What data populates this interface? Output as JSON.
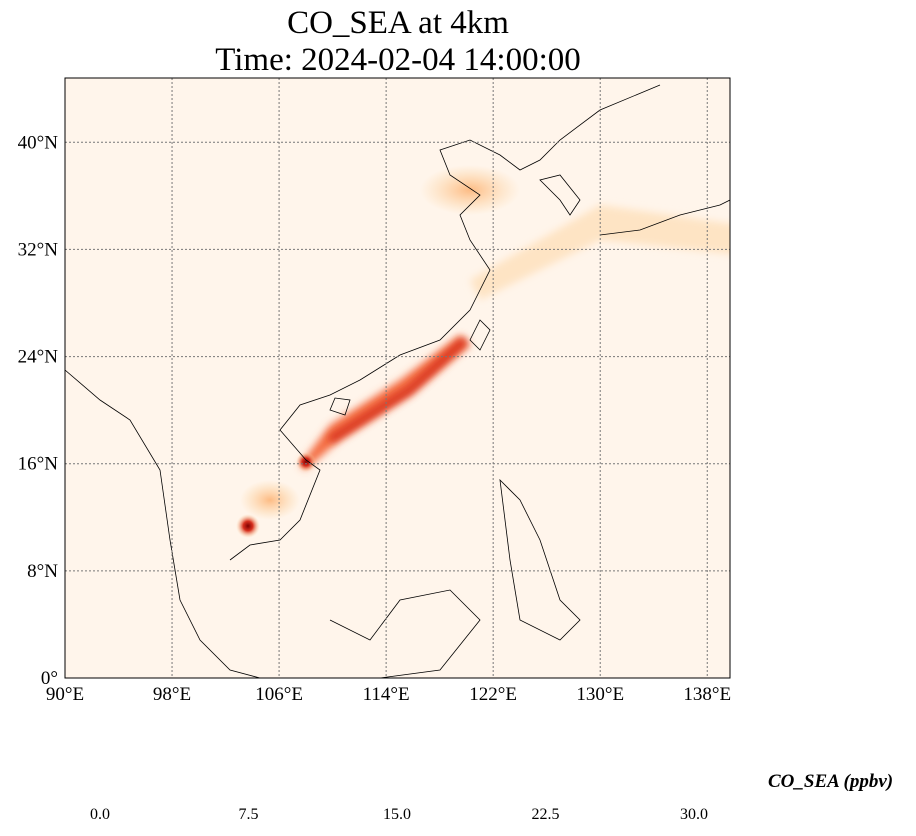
{
  "title": {
    "line1": "CO_SEA at 4km",
    "line2": "Time: 2024-02-04 14:00:00"
  },
  "chart_data": {
    "type": "heatmap",
    "title": "CO_SEA at 4km — Time: 2024-02-04 14:00:00",
    "xlim": [
      90,
      139.7
    ],
    "ylim": [
      0,
      44.8
    ],
    "x_ticks": [
      90,
      98,
      106,
      114,
      122,
      130,
      138
    ],
    "x_tick_labels": [
      "90°E",
      "98°E",
      "106°E",
      "114°E",
      "122°E",
      "130°E",
      "138°E"
    ],
    "y_ticks": [
      0,
      8,
      16,
      24,
      32,
      40
    ],
    "y_tick_labels": [
      "0°",
      "8°N",
      "16°N",
      "24°N",
      "32°N",
      "40°N"
    ],
    "grid": true,
    "colorbar": {
      "label": "CO_SEA (ppbv)",
      "min": 0,
      "max": 30,
      "ticks": [
        "0.0",
        "7.5",
        "15.0",
        "22.5",
        "30.0"
      ],
      "colormap": "OrRd",
      "extend": "both"
    },
    "features": [
      {
        "name": "main plume",
        "from": [
          108,
          16
        ],
        "to": [
          119,
          27
        ],
        "peak": 30
      },
      {
        "name": "Cambodia hotspot",
        "at": [
          104,
          11
        ],
        "peak": 30
      },
      {
        "name": "Vietnam hotspot",
        "at": [
          108.3,
          16.2
        ],
        "peak": 30
      },
      {
        "name": "North China Plain / Yellow Sea",
        "at": [
          123,
          36
        ],
        "peak": 8
      },
      {
        "name": "Japan outflow",
        "from": [
          122,
          30
        ],
        "to": [
          139,
          33
        ],
        "peak": 6
      }
    ]
  }
}
